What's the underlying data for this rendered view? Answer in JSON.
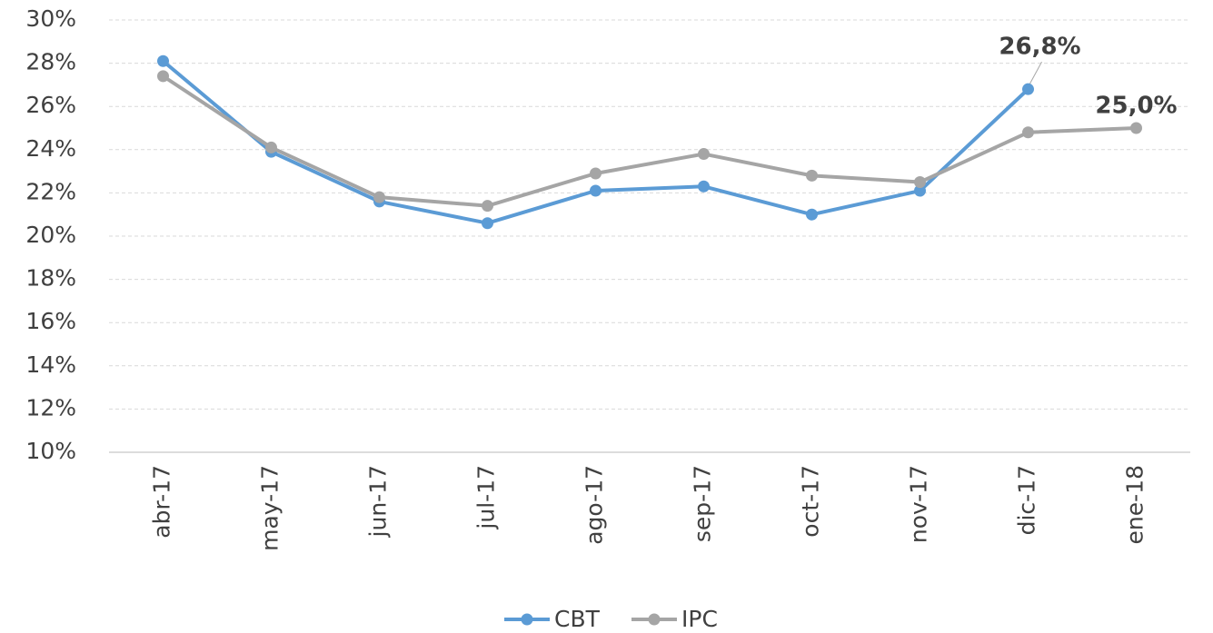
{
  "chart_data": {
    "type": "line",
    "categories": [
      "abr-17",
      "may-17",
      "jun-17",
      "jul-17",
      "ago-17",
      "sep-17",
      "oct-17",
      "nov-17",
      "dic-17",
      "ene-18"
    ],
    "series": [
      {
        "name": "CBT",
        "color": "#5b9bd5",
        "values": [
          28.1,
          23.9,
          21.6,
          20.6,
          22.1,
          22.3,
          21.0,
          22.1,
          26.8,
          null
        ],
        "value_labels": [
          null,
          null,
          null,
          null,
          null,
          null,
          null,
          null,
          "26,8%",
          null
        ]
      },
      {
        "name": "IPC",
        "color": "#a5a5a5",
        "values": [
          27.4,
          24.1,
          21.8,
          21.4,
          22.9,
          23.8,
          22.8,
          22.5,
          24.8,
          25.0
        ],
        "value_labels": [
          null,
          null,
          null,
          null,
          null,
          null,
          null,
          null,
          null,
          "25,0%"
        ]
      }
    ],
    "ylim": [
      10,
      30
    ],
    "yticks": [
      {
        "value": 10,
        "label": "10%"
      },
      {
        "value": 12,
        "label": "12%"
      },
      {
        "value": 14,
        "label": "14%"
      },
      {
        "value": 16,
        "label": "16%"
      },
      {
        "value": 18,
        "label": "18%"
      },
      {
        "value": 20,
        "label": "20%"
      },
      {
        "value": 22,
        "label": "22%"
      },
      {
        "value": 24,
        "label": "24%"
      },
      {
        "value": 26,
        "label": "26%"
      },
      {
        "value": 28,
        "label": "28%"
      },
      {
        "value": 30,
        "label": "30%"
      }
    ],
    "grid": true,
    "legend": "bottom"
  }
}
